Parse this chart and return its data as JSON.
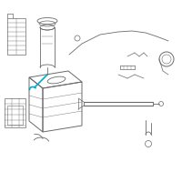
{
  "bg_color": "#ffffff",
  "line_color": "#6a6a6a",
  "highlight_color": "#00aacc",
  "lw": 0.6,
  "fig_size": [
    2.0,
    2.0
  ],
  "dpi": 100
}
